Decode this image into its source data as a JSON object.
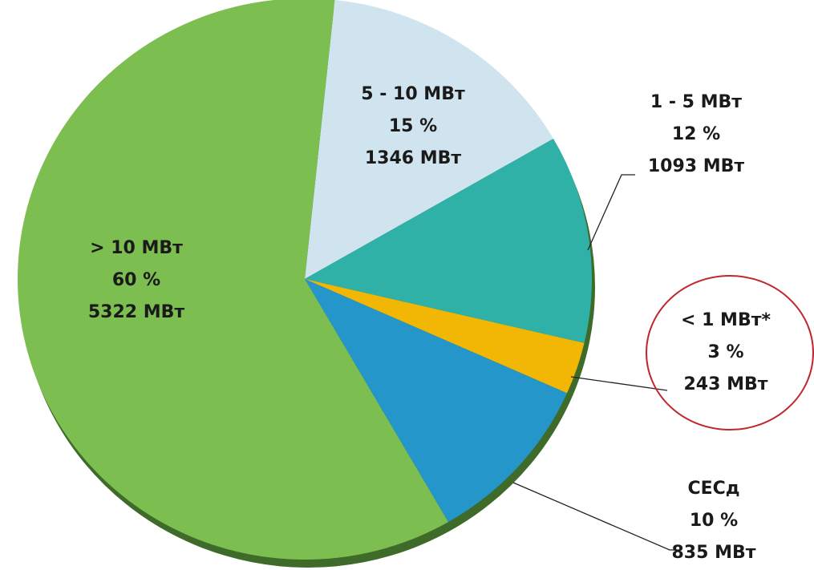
{
  "chart_data": {
    "type": "pie",
    "categories": [
      "5 - 10 МВт",
      "1 - 5 МВт",
      "< 1 МВт*",
      "СЕСд",
      "> 10 МВт"
    ],
    "values": [
      15,
      12,
      3,
      10,
      60
    ],
    "value_labels": [
      "15 %",
      "12 %",
      "3 %",
      "10 %",
      "60 %"
    ],
    "capacity_labels": [
      "1346 МВт",
      "1093 МВт",
      "243 МВт",
      "835 МВт",
      "5322 МВт"
    ],
    "colors": [
      "#cfe4ee",
      "#2fb1a8",
      "#f2b705",
      "#2596c9",
      "#7dbe50"
    ]
  }
}
